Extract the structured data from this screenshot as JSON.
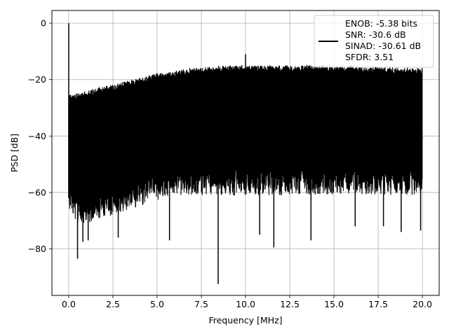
{
  "chart_data": {
    "type": "line",
    "title": "",
    "xlabel": "Frequency [MHz]",
    "ylabel": "PSD [dB]",
    "xlim": [
      -0.95,
      20.95
    ],
    "ylim": [
      -96.5,
      4.5
    ],
    "xticks": [
      0.0,
      2.5,
      5.0,
      7.5,
      10.0,
      12.5,
      15.0,
      17.5,
      20.0
    ],
    "xtick_labels": [
      "0.0",
      "2.5",
      "5.0",
      "7.5",
      "10.0",
      "12.5",
      "15.0",
      "17.5",
      "20.0"
    ],
    "yticks": [
      0,
      -20,
      -40,
      -60,
      -80
    ],
    "ytick_labels": [
      "0",
      "−20",
      "−40",
      "−60",
      "−80"
    ],
    "grid": true,
    "legend_position": "top-right",
    "series": [
      {
        "name": "ENOB: -5.38 bits\nSNR: -30.6 dB\nSINAD: -30.61 dB\nSFDR: 3.51",
        "color": "#000000",
        "envelope": {
          "x": [
            0.0,
            0.2,
            0.5,
            1.0,
            2.0,
            3.0,
            4.0,
            5.0,
            6.0,
            7.0,
            8.0,
            9.0,
            10.0,
            11.0,
            12.0,
            13.0,
            14.0,
            15.0,
            16.0,
            17.0,
            18.0,
            19.0,
            20.0
          ],
          "upper": [
            -26,
            -26.5,
            -26,
            -25,
            -23.5,
            -22,
            -20.5,
            -19,
            -18,
            -17,
            -16.5,
            -16,
            -16,
            -16,
            -16,
            -16,
            -16,
            -16,
            -16,
            -16.5,
            -16.5,
            -17,
            -17
          ],
          "lower": [
            -62,
            -66,
            -68,
            -68,
            -66,
            -64,
            -62,
            -60,
            -58,
            -58,
            -58,
            -58,
            -58,
            -58,
            -58,
            -58,
            -58,
            -58,
            -58,
            -58,
            -58,
            -58,
            -58
          ]
        },
        "peaks": [
          {
            "x": 0.0,
            "y": 0
          },
          {
            "x": 10.0,
            "y": -11
          }
        ],
        "dips": [
          {
            "x": 0.5,
            "y": -83.5
          },
          {
            "x": 0.8,
            "y": -77.5
          },
          {
            "x": 1.1,
            "y": -77
          },
          {
            "x": 2.8,
            "y": -76
          },
          {
            "x": 5.7,
            "y": -77
          },
          {
            "x": 8.45,
            "y": -92.5
          },
          {
            "x": 10.8,
            "y": -75
          },
          {
            "x": 11.6,
            "y": -79.5
          },
          {
            "x": 13.7,
            "y": -77
          },
          {
            "x": 16.2,
            "y": -72
          },
          {
            "x": 17.8,
            "y": -72
          },
          {
            "x": 18.8,
            "y": -74
          },
          {
            "x": 19.9,
            "y": -73.5
          }
        ]
      }
    ]
  }
}
